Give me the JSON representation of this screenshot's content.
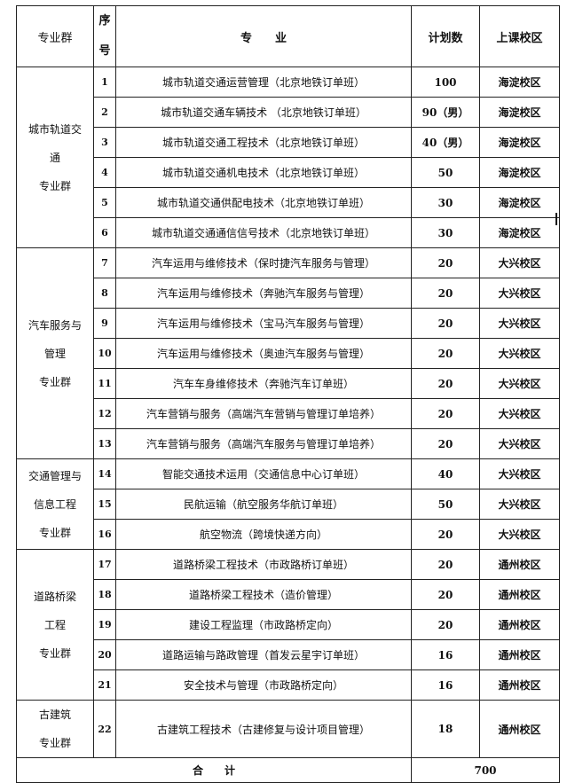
{
  "header": {
    "group": "专业群",
    "seq": "序号",
    "major": "专　　业",
    "plan": "计划数",
    "campus": "上课校区"
  },
  "groups": [
    {
      "name_lines": [
        "城市轨道交",
        "通",
        "专业群"
      ],
      "rows": [
        {
          "seq": "1",
          "major": "城市轨道交通运营管理（北京地铁订单班）",
          "plan": "100",
          "campus": "海淀校区"
        },
        {
          "seq": "2",
          "major": "城市轨道交通车辆技术 （北京地铁订单班）",
          "plan": "90（男）",
          "campus": "海淀校区"
        },
        {
          "seq": "3",
          "major": "城市轨道交通工程技术（北京地铁订单班）",
          "plan": "40（男）",
          "campus": "海淀校区"
        },
        {
          "seq": "4",
          "major": "城市轨道交通机电技术（北京地铁订单班）",
          "plan": "50",
          "campus": "海淀校区"
        },
        {
          "seq": "5",
          "major": "城市轨道交通供配电技术（北京地铁订单班）",
          "plan": "30",
          "campus": "海淀校区"
        },
        {
          "seq": "6",
          "major": "城市轨道交通通信信号技术（北京地铁订单班）",
          "plan": "30",
          "campus": "海淀校区"
        }
      ]
    },
    {
      "name_lines": [
        "汽车服务与",
        "管理",
        "专业群"
      ],
      "rows": [
        {
          "seq": "7",
          "major": "汽车运用与维修技术（保时捷汽车服务与管理）",
          "plan": "20",
          "campus": "大兴校区"
        },
        {
          "seq": "8",
          "major": "汽车运用与维修技术（奔驰汽车服务与管理）",
          "plan": "20",
          "campus": "大兴校区"
        },
        {
          "seq": "9",
          "major": "汽车运用与维修技术（宝马汽车服务与管理）",
          "plan": "20",
          "campus": "大兴校区"
        },
        {
          "seq": "10",
          "major": "汽车运用与维修技术（奥迪汽车服务与管理）",
          "plan": "20",
          "campus": "大兴校区"
        },
        {
          "seq": "11",
          "major": "汽车车身维修技术（奔驰汽车订单班）",
          "plan": "20",
          "campus": "大兴校区"
        },
        {
          "seq": "12",
          "major": "汽车营销与服务（高端汽车营销与管理订单培养）",
          "plan": "20",
          "campus": "大兴校区"
        },
        {
          "seq": "13",
          "major": "汽车营销与服务（高端汽车服务与管理订单培养）",
          "plan": "20",
          "campus": "大兴校区"
        }
      ]
    },
    {
      "name_lines": [
        "交通管理与",
        "信息工程",
        "专业群"
      ],
      "rows": [
        {
          "seq": "14",
          "major": "智能交通技术运用（交通信息中心订单班）",
          "plan": "40",
          "campus": "大兴校区"
        },
        {
          "seq": "15",
          "major": "民航运输（航空服务华航订单班）",
          "plan": "50",
          "campus": "大兴校区"
        },
        {
          "seq": "16",
          "major": "航空物流（跨境快递方向）",
          "plan": "20",
          "campus": "大兴校区"
        }
      ]
    },
    {
      "name_lines": [
        "道路桥梁",
        "工程",
        "专业群"
      ],
      "rows": [
        {
          "seq": "17",
          "major": "道路桥梁工程技术（市政路桥订单班）",
          "plan": "20",
          "campus": "通州校区"
        },
        {
          "seq": "18",
          "major": "道路桥梁工程技术（造价管理）",
          "plan": "20",
          "campus": "通州校区"
        },
        {
          "seq": "19",
          "major": "建设工程监理（市政路桥定向）",
          "plan": "20",
          "campus": "通州校区"
        },
        {
          "seq": "20",
          "major": "道路运输与路政管理（首发云星宇订单班）",
          "plan": "16",
          "campus": "通州校区"
        },
        {
          "seq": "21",
          "major": "安全技术与管理（市政路桥定向）",
          "plan": "16",
          "campus": "通州校区"
        }
      ]
    },
    {
      "name_lines": [
        "古建筑",
        "专业群"
      ],
      "rows": [
        {
          "seq": "22",
          "major": "古建筑工程技术（古建修复与设计项目管理）",
          "plan": "18",
          "campus": "通州校区"
        }
      ]
    }
  ],
  "total": {
    "label": "合　　计",
    "value": "700"
  }
}
